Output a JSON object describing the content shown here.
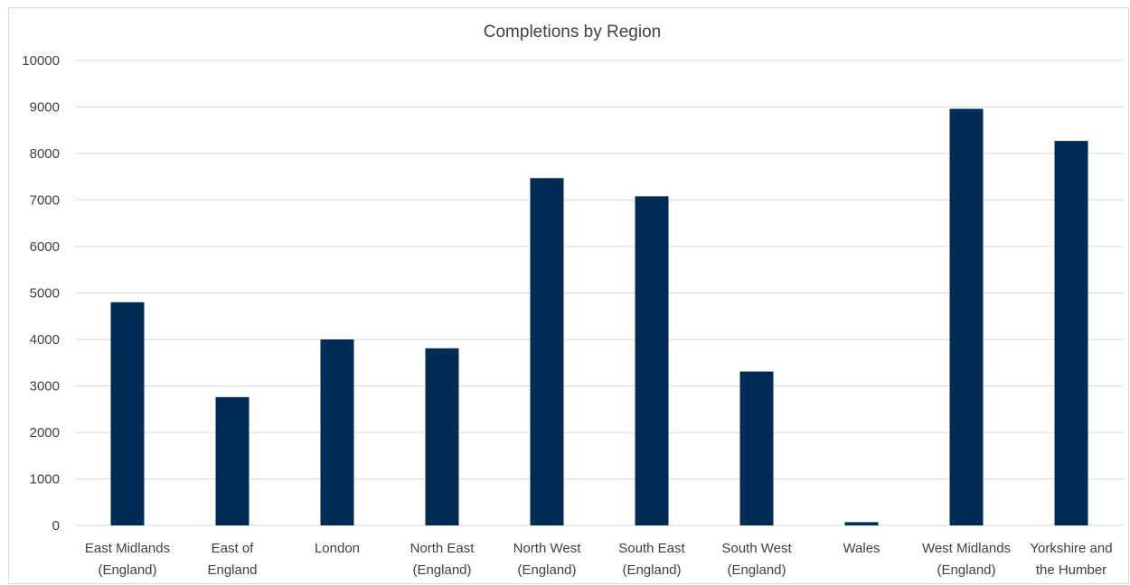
{
  "chart_data": {
    "type": "bar",
    "title": "Completions by Region",
    "xlabel": "",
    "ylabel": "",
    "ylim": [
      0,
      10000
    ],
    "yticks": [
      0,
      1000,
      2000,
      3000,
      4000,
      5000,
      6000,
      7000,
      8000,
      9000,
      10000
    ],
    "grid": true,
    "legend": "none",
    "bar_color": "#002b54",
    "categories": [
      [
        "East Midlands",
        "(England)"
      ],
      [
        "East of",
        "England"
      ],
      [
        "London"
      ],
      [
        "North East",
        "(England)"
      ],
      [
        "North West",
        "(England)"
      ],
      [
        "South East",
        "(England)"
      ],
      [
        "South West",
        "(England)"
      ],
      [
        "Wales"
      ],
      [
        "West Midlands",
        "(England)"
      ],
      [
        "Yorkshire and",
        "the Humber"
      ]
    ],
    "values": [
      4800,
      2760,
      4000,
      3810,
      7470,
      7080,
      3310,
      70,
      8960,
      8270
    ]
  }
}
